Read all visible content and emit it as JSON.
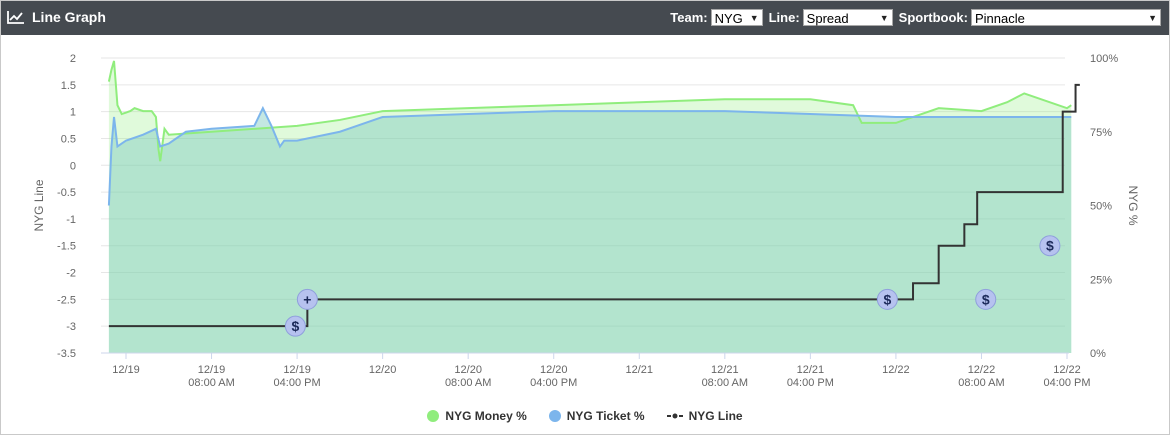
{
  "header": {
    "title": "Line Graph",
    "team_label": "Team:",
    "team_value": "NYG",
    "line_label": "Line:",
    "line_value": "Spread",
    "book_label": "Sportbook:",
    "book_value": "Pinnacle"
  },
  "chart_data": {
    "type": "line",
    "left_axis": {
      "label": "NYG Line",
      "ticks": [
        "2",
        "1.5",
        "1",
        "0.5",
        "0",
        "-0.5",
        "-1",
        "-1.5",
        "-2",
        "-2.5",
        "-3",
        "-3.5"
      ],
      "range": [
        -3.5,
        2
      ]
    },
    "right_axis": {
      "label": "NYG %",
      "ticks": [
        "100%",
        "75%",
        "50%",
        "25%",
        "0%"
      ],
      "range": [
        0,
        100
      ]
    },
    "x_ticks": [
      {
        "line1": "12/19",
        "line2": ""
      },
      {
        "line1": "12/19",
        "line2": "08:00 AM"
      },
      {
        "line1": "12/19",
        "line2": "04:00 PM"
      },
      {
        "line1": "12/20",
        "line2": ""
      },
      {
        "line1": "12/20",
        "line2": "08:00 AM"
      },
      {
        "line1": "12/20",
        "line2": "04:00 PM"
      },
      {
        "line1": "12/21",
        "line2": ""
      },
      {
        "line1": "12/21",
        "line2": "08:00 AM"
      },
      {
        "line1": "12/21",
        "line2": "04:00 PM"
      },
      {
        "line1": "12/22",
        "line2": ""
      },
      {
        "line1": "12/22",
        "line2": "08:00 AM"
      },
      {
        "line1": "12/22",
        "line2": "04:00 PM"
      }
    ],
    "x_range": [
      -0.2,
      11.15
    ],
    "series": [
      {
        "name": "NYG Money %",
        "color": "#90ed7d",
        "axis": "right",
        "points": [
          [
            -0.2,
            92
          ],
          [
            -0.17,
            96
          ],
          [
            -0.14,
            99
          ],
          [
            -0.1,
            84
          ],
          [
            -0.05,
            81
          ],
          [
            0.05,
            82
          ],
          [
            0.1,
            83
          ],
          [
            0.2,
            82
          ],
          [
            0.3,
            82
          ],
          [
            0.35,
            80
          ],
          [
            0.38,
            69
          ],
          [
            0.4,
            65
          ],
          [
            0.45,
            76
          ],
          [
            0.5,
            74
          ],
          [
            1.0,
            75
          ],
          [
            2.0,
            77
          ],
          [
            2.5,
            79
          ],
          [
            3.0,
            82
          ],
          [
            4.0,
            83
          ],
          [
            5.0,
            84
          ],
          [
            6.0,
            85
          ],
          [
            7.0,
            86
          ],
          [
            8.0,
            86
          ],
          [
            8.5,
            84
          ],
          [
            8.6,
            78
          ],
          [
            9.0,
            78
          ],
          [
            9.5,
            83
          ],
          [
            10.0,
            82
          ],
          [
            10.3,
            85
          ],
          [
            10.5,
            88
          ],
          [
            11.0,
            83
          ],
          [
            11.05,
            84
          ]
        ]
      },
      {
        "name": "NYG Ticket %",
        "color": "#7cb5ec",
        "axis": "right",
        "points": [
          [
            -0.2,
            50
          ],
          [
            -0.17,
            70
          ],
          [
            -0.14,
            80
          ],
          [
            -0.1,
            70
          ],
          [
            0.0,
            72
          ],
          [
            0.2,
            74
          ],
          [
            0.35,
            76
          ],
          [
            0.4,
            70
          ],
          [
            0.5,
            71
          ],
          [
            0.7,
            75
          ],
          [
            1.0,
            76
          ],
          [
            1.5,
            77
          ],
          [
            1.6,
            83
          ],
          [
            1.7,
            77
          ],
          [
            1.8,
            70
          ],
          [
            1.85,
            72
          ],
          [
            2.0,
            72
          ],
          [
            2.5,
            75
          ],
          [
            3.0,
            80
          ],
          [
            4.0,
            81
          ],
          [
            5.0,
            82
          ],
          [
            6.0,
            82
          ],
          [
            7.0,
            82
          ],
          [
            8.0,
            81
          ],
          [
            9.0,
            80
          ],
          [
            10.0,
            80
          ],
          [
            11.05,
            80
          ]
        ]
      },
      {
        "name": "NYG Line",
        "color": "#333333",
        "axis": "left",
        "points": [
          [
            -0.2,
            -3
          ],
          [
            2.12,
            -3
          ],
          [
            2.12,
            -2.5
          ],
          [
            9.2,
            -2.5
          ],
          [
            9.2,
            -2.2
          ],
          [
            9.5,
            -2.2
          ],
          [
            9.5,
            -1.5
          ],
          [
            9.8,
            -1.5
          ],
          [
            9.8,
            -1.1
          ],
          [
            9.95,
            -1.1
          ],
          [
            9.95,
            -0.5
          ],
          [
            10.95,
            -0.5
          ],
          [
            10.95,
            1
          ],
          [
            11.1,
            1
          ],
          [
            11.1,
            1.5
          ],
          [
            11.15,
            1.5
          ]
        ]
      }
    ],
    "markers": [
      {
        "x": 1.98,
        "y": -3,
        "icon": "$"
      },
      {
        "x": 2.12,
        "y": -2.5,
        "icon": "+"
      },
      {
        "x": 8.9,
        "y": -2.5,
        "icon": "$"
      },
      {
        "x": 10.05,
        "y": -2.5,
        "icon": "$"
      },
      {
        "x": 10.8,
        "y": -1.5,
        "icon": "$"
      }
    ],
    "legend": [
      {
        "name": "NYG Money %",
        "color": "#90ed7d",
        "shape": "dot"
      },
      {
        "name": "NYG Ticket %",
        "color": "#7cb5ec",
        "shape": "dot"
      },
      {
        "name": "NYG Line",
        "color": "#333333",
        "shape": "line"
      }
    ],
    "grid": true
  }
}
